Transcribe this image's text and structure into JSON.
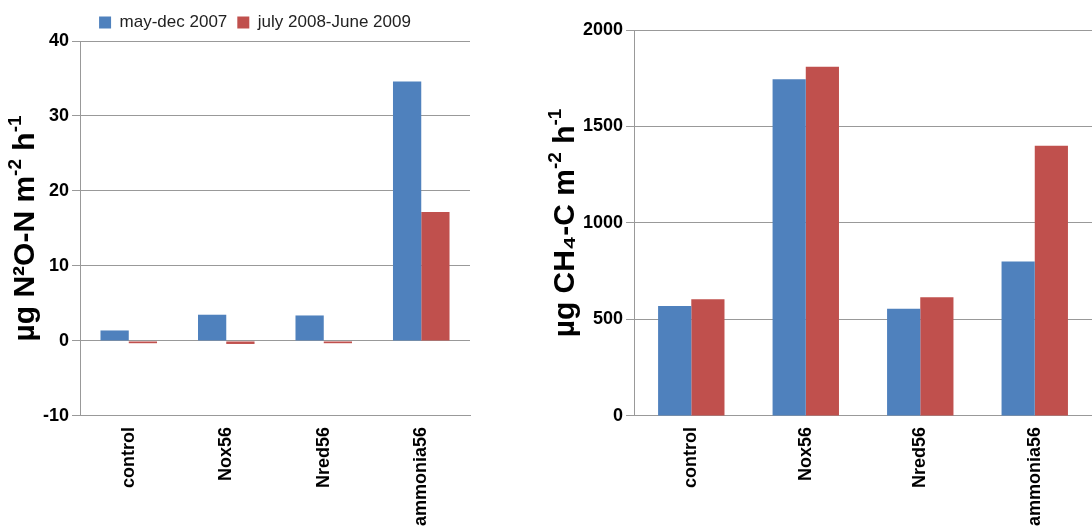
{
  "chart_data": [
    {
      "type": "bar",
      "ylabel": "µg N²O-N m$^{-2}$ h$^{-1}$",
      "categories": [
        "control",
        "Nox56",
        "Nred56",
        "ammonia56"
      ],
      "series": [
        {
          "name": "may-dec 2007",
          "color": "#4f81bd",
          "values": [
            1.4,
            3.5,
            3.4,
            34.6
          ]
        },
        {
          "name": "july 2008-June 2009",
          "color": "#c0504d",
          "values": [
            -0.3,
            -0.4,
            -0.3,
            17.2
          ]
        }
      ],
      "ylim": [
        -10,
        40
      ],
      "yticks": [
        -10,
        0,
        10,
        20,
        30,
        40
      ],
      "grid": "y",
      "legend": "top"
    },
    {
      "type": "bar",
      "ylabel": "µg CH₄-C m$^{-2}$ h$^{-1}$",
      "categories": [
        "control",
        "Nox56",
        "Nred56",
        "ammonia56"
      ],
      "series": [
        {
          "color": "#4f81bd",
          "values": [
            570,
            1745,
            555,
            800
          ]
        },
        {
          "color": "#c0504d",
          "values": [
            605,
            1810,
            615,
            1400
          ]
        }
      ],
      "ylim": [
        0,
        2000
      ],
      "yticks": [
        0,
        500,
        1000,
        1500,
        2000
      ],
      "grid": "y"
    }
  ]
}
